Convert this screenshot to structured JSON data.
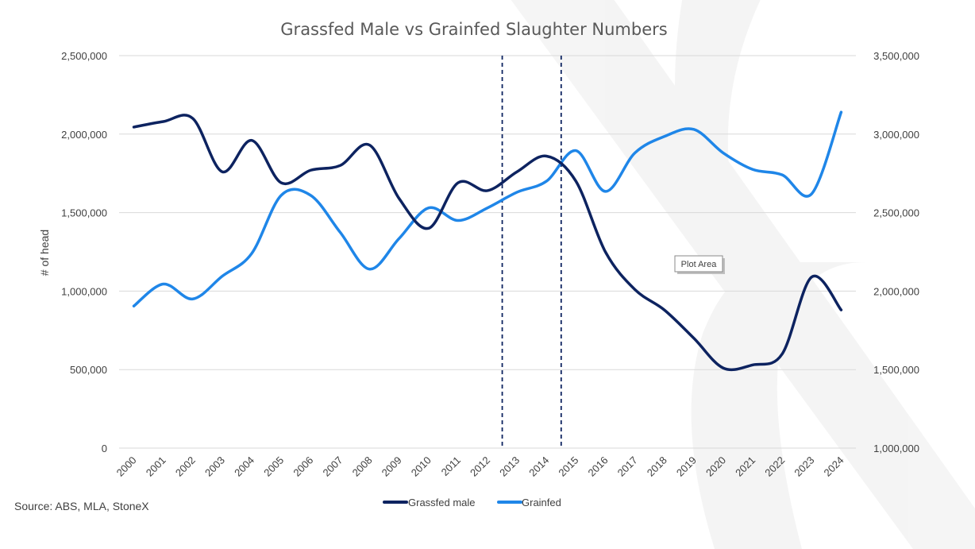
{
  "chart_data": {
    "type": "line",
    "title": "Grassfed Male vs Grainfed Slaughter Numbers",
    "ylabel": "# of head",
    "x": [
      "2000",
      "2001",
      "2002",
      "2003",
      "2004",
      "2005",
      "2006",
      "2007",
      "2008",
      "2009",
      "2010",
      "2011",
      "2012",
      "2013",
      "2014",
      "2015",
      "2016",
      "2017",
      "2018",
      "2019",
      "2020",
      "2021",
      "2022",
      "2023",
      "2024"
    ],
    "ylim": [
      0,
      2500000
    ],
    "y2lim": [
      1000000,
      3500000
    ],
    "y_ticks": [
      "0",
      "500,000",
      "1,000,000",
      "1,500,000",
      "2,000,000",
      "2,500,000"
    ],
    "y2_ticks": [
      "1,000,000",
      "1,500,000",
      "2,000,000",
      "2,500,000",
      "3,000,000",
      "3,500,000"
    ],
    "series": [
      {
        "name": "Grassfed male",
        "axis": "left",
        "color": "#0d2360",
        "values": [
          2045000,
          2080000,
          2100000,
          1760000,
          1960000,
          1690000,
          1770000,
          1800000,
          1930000,
          1590000,
          1400000,
          1690000,
          1640000,
          1760000,
          1860000,
          1700000,
          1250000,
          1010000,
          880000,
          700000,
          510000,
          530000,
          600000,
          1090000,
          880000
        ]
      },
      {
        "name": "Grainfed",
        "axis": "right",
        "color": "#1f86e8",
        "values": [
          1905000,
          2045000,
          1950000,
          2095000,
          2240000,
          2610000,
          2610000,
          2375000,
          2140000,
          2335000,
          2530000,
          2450000,
          2530000,
          2630000,
          2700000,
          2895000,
          2635000,
          2880000,
          2985000,
          3030000,
          2880000,
          2775000,
          2740000,
          2620000,
          3140000
        ]
      }
    ],
    "reference_lines": [
      {
        "x_between": [
          "2012",
          "2013"
        ],
        "style": "dashed",
        "color": "#0d2360"
      },
      {
        "x_between": [
          "2014",
          "2015"
        ],
        "style": "dashed",
        "color": "#0d2360"
      }
    ],
    "grid": true,
    "legend": "bottom-center"
  },
  "source_text": "Source: ABS, MLA, StoneX",
  "tooltip": "Plot Area",
  "watermark_icon": "stonex-x-logo"
}
